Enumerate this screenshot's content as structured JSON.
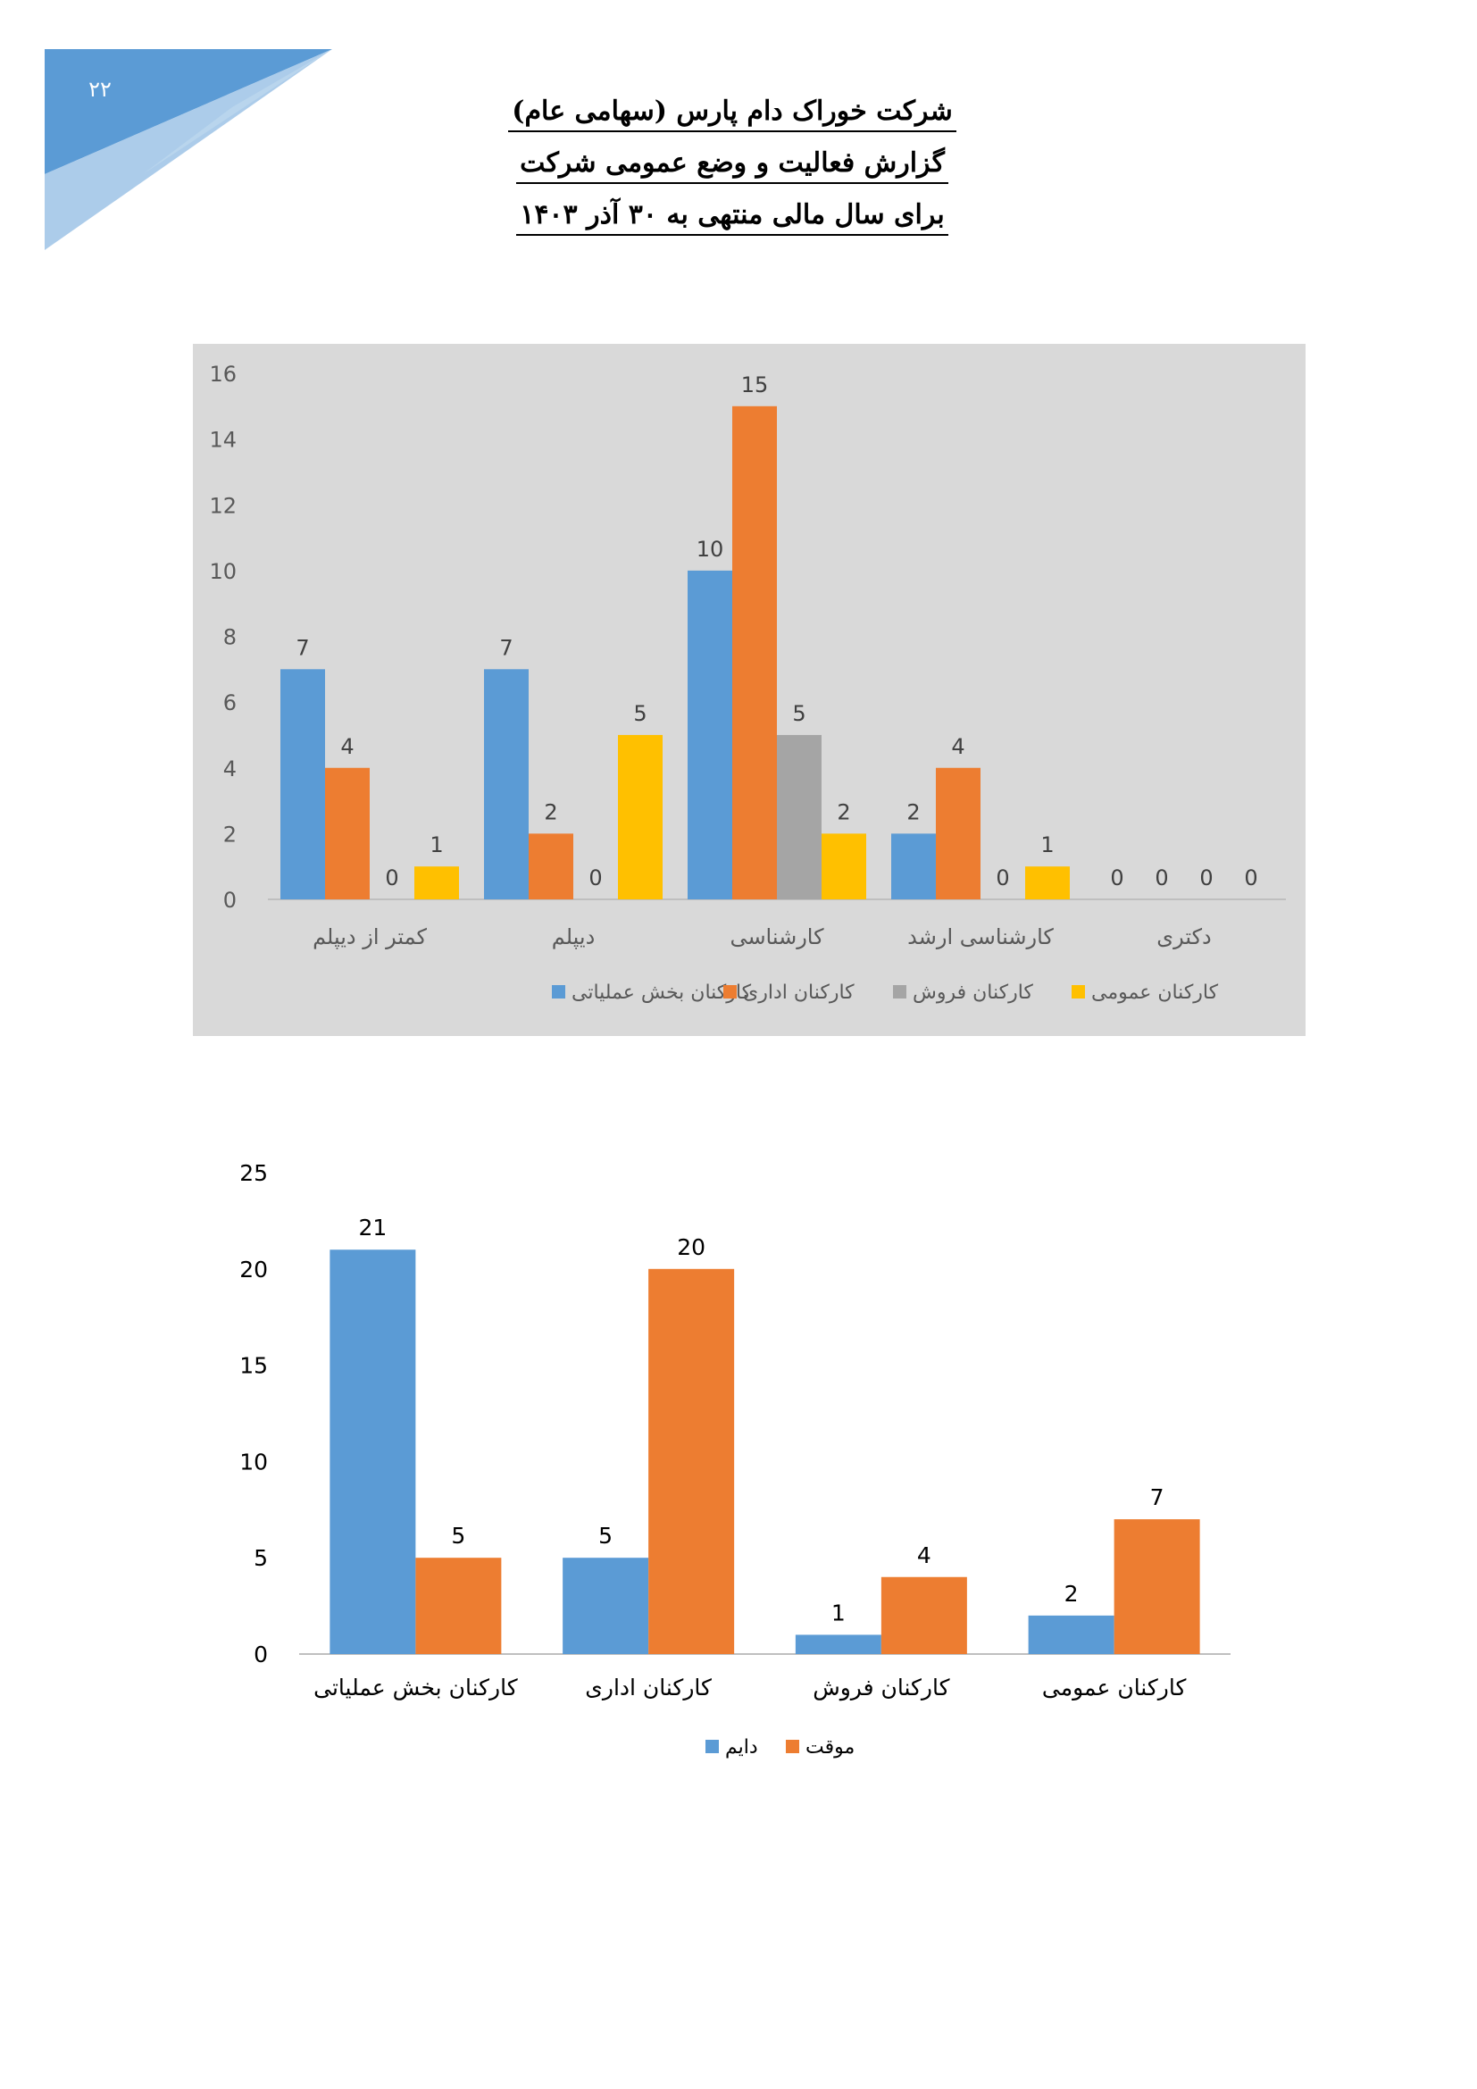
{
  "page": {
    "number": "۲۲",
    "title_lines": [
      "شرکت خوراک دام پارس (سهامی عام)",
      "گزارش فعالیت و وضع عمومی شرکت",
      "برای سال مالی منتهی به ۳۰ آذر ۱۴۰۳"
    ]
  },
  "colors": {
    "blue": "#5b9bd5",
    "orange": "#ed7d31",
    "gray": "#a5a5a5",
    "yellow": "#ffc000",
    "chart1_bg": "#d9d9d9"
  },
  "chart_data": [
    {
      "type": "bar",
      "title": "",
      "xlabel": "",
      "ylabel": "",
      "ylim": [
        0,
        16
      ],
      "yticks": [
        0,
        2,
        4,
        6,
        8,
        10,
        12,
        14,
        16
      ],
      "categories": [
        "کمتر از دیپلم",
        "دیپلم",
        "کارشناسی",
        "کارشناسی ارشد",
        "دکتری"
      ],
      "series": [
        {
          "name": "کارکنان بخش عملیاتی",
          "color": "#5b9bd5",
          "values": [
            7,
            7,
            10,
            2,
            0
          ]
        },
        {
          "name": "کارکنان اداری",
          "color": "#ed7d31",
          "values": [
            4,
            2,
            15,
            4,
            0
          ]
        },
        {
          "name": "کارکنان فروش",
          "color": "#a5a5a5",
          "values": [
            0,
            0,
            5,
            0,
            0
          ]
        },
        {
          "name": "کارکنان عمومی",
          "color": "#ffc000",
          "values": [
            1,
            5,
            2,
            1,
            0
          ]
        }
      ],
      "legend_position": "bottom",
      "grid": false,
      "data_labels": true
    },
    {
      "type": "bar",
      "title": "",
      "xlabel": "",
      "ylabel": "",
      "ylim": [
        0,
        25
      ],
      "yticks": [
        0,
        5,
        10,
        15,
        20,
        25
      ],
      "categories": [
        "کارکنان بخش عملیاتی",
        "کارکنان اداری",
        "کارکنان فروش",
        "کارکنان عمومی"
      ],
      "series": [
        {
          "name": "دایم",
          "color": "#5b9bd5",
          "values": [
            21,
            5,
            1,
            2
          ]
        },
        {
          "name": "موقت",
          "color": "#ed7d31",
          "values": [
            5,
            20,
            4,
            7
          ]
        }
      ],
      "legend_position": "bottom",
      "grid": false,
      "data_labels": true
    }
  ]
}
